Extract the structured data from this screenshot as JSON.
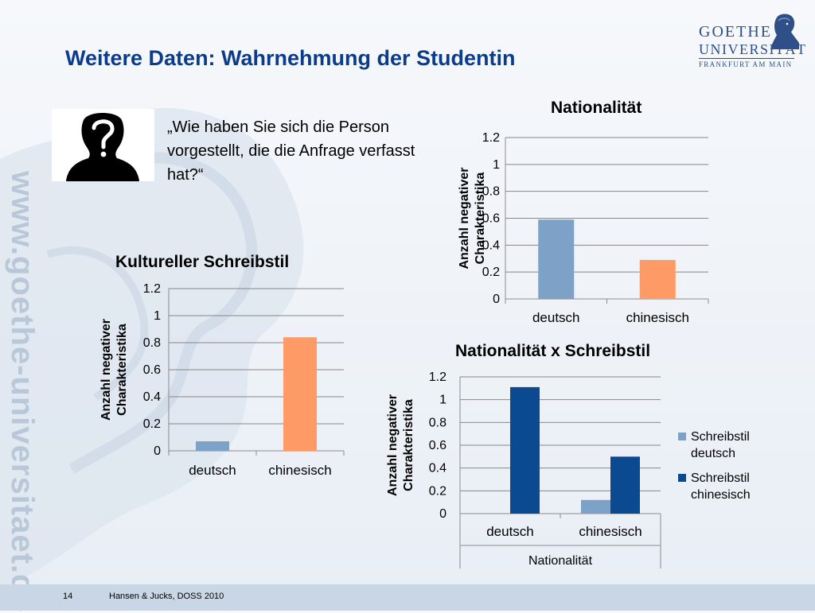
{
  "slide": {
    "title": "Weitere Daten: Wahrnehmung der Studentin",
    "side_url": "www.goethe-universitaet.de",
    "quote": "„Wie haben Sie sich die Person vorgestellt, die die Anfrage verfasst hat?“",
    "page_number": "14",
    "citation": "Hansen & Jucks, DOSS 2010"
  },
  "logo": {
    "line1": "GOETHE",
    "line2": "UNIVERSITÄT",
    "line3": "FRANKFURT AM MAIN"
  },
  "colors": {
    "title": "#0b3c8c",
    "bar_light_blue": "#7ea1c7",
    "bar_orange": "#fd9a65",
    "bar_dark_blue": "#0b4a91",
    "axis": "#8c8c8c",
    "grid": "#878787"
  },
  "icons": {
    "portrait": "anonymous-person-question-mark-icon"
  },
  "chart_data": [
    {
      "id": "nationalitaet",
      "type": "bar",
      "title": "Nationalität",
      "xlabel": "",
      "ylabel": "Anzahl negativer Charakteristika",
      "ylim": [
        0,
        1.2
      ],
      "yticks": [
        "0",
        "0.2",
        "0.4",
        "0.6",
        "0.8",
        "1",
        "1.2"
      ],
      "categories": [
        "deutsch",
        "chinesisch"
      ],
      "values": [
        0.59,
        0.29
      ],
      "bar_colors": [
        "#7ea1c7",
        "#fd9a65"
      ],
      "grid": true,
      "legend": "none"
    },
    {
      "id": "kultureller_schreibstil",
      "type": "bar",
      "title": "Kultureller Schreibstil",
      "xlabel": "",
      "ylabel": "Anzahl negativer Charakteristika",
      "ylim": [
        0,
        1.2
      ],
      "yticks": [
        "0",
        "0.2",
        "0.4",
        "0.6",
        "0.8",
        "1",
        "1.2"
      ],
      "categories": [
        "deutsch",
        "chinesisch"
      ],
      "values": [
        0.07,
        0.84
      ],
      "bar_colors": [
        "#7ea1c7",
        "#fd9a65"
      ],
      "grid": true,
      "legend": "none"
    },
    {
      "id": "nationalitaet_x_schreibstil",
      "type": "bar",
      "title": "Nationalität x Schreibstil",
      "xlabel": "Nationalität",
      "ylabel": "Anzahl negativer Charakteristika",
      "ylim": [
        0,
        1.2
      ],
      "yticks": [
        "0",
        "0.2",
        "0.4",
        "0.6",
        "0.8",
        "1",
        "1.2"
      ],
      "categories": [
        "deutsch",
        "chinesisch"
      ],
      "series": [
        {
          "name": "Schreibstil deutsch",
          "values": [
            0,
            0.12
          ],
          "color": "#7ea1c7"
        },
        {
          "name": "Schreibstil chinesisch",
          "values": [
            1.11,
            0.5
          ],
          "color": "#0b4a91"
        }
      ],
      "grid": true,
      "legend": "right"
    }
  ]
}
